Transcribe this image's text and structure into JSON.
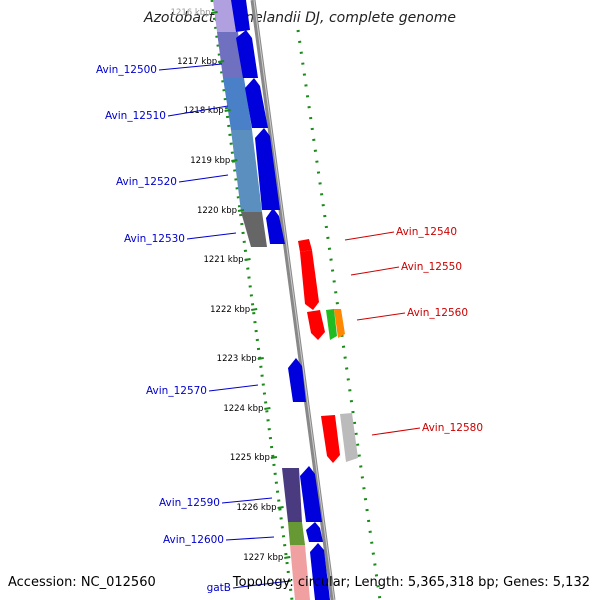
{
  "title": "Azotobacter vinelandii DJ, complete genome",
  "accession": "Accession: NC_012560",
  "topology": "Topology: circular; Length: 5,365,318 bp; Genes: 5,132",
  "colors": {
    "left_gene_label": "#0000cc",
    "right_gene_label": "#cc0000",
    "ruler_dots": "#1a8a1a",
    "backbone": "#888888"
  },
  "ruler_labels": [
    "1216 kbp",
    "1217 kbp",
    "1218 kbp",
    "1219 kbp",
    "1220 kbp",
    "1221 kbp",
    "1222 kbp",
    "1223 kbp",
    "1224 kbp",
    "1225 kbp",
    "1226 kbp",
    "1227 kbp"
  ],
  "left_genes": [
    "Avin_12500",
    "Avin_12510",
    "Avin_12520",
    "Avin_12530",
    "Avin_12570",
    "Avin_12590",
    "Avin_12600",
    "gatB"
  ],
  "right_genes": [
    "Avin_12540",
    "Avin_12550",
    "Avin_12560",
    "Avin_12580"
  ]
}
